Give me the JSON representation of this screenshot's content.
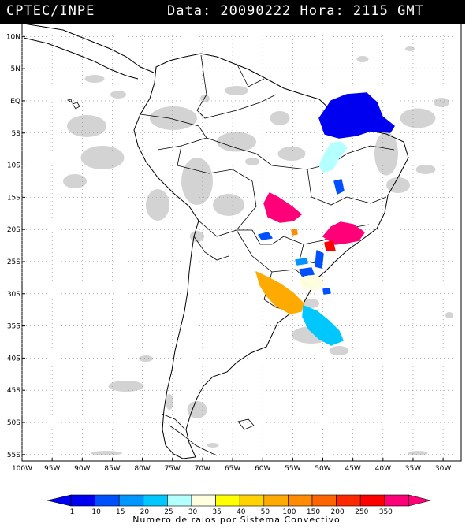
{
  "header": {
    "left": "CPTEC/INPE",
    "right": "Data: 20090222 Hora: 2115 GMT"
  },
  "map": {
    "lat_labels": [
      "10N",
      "5N",
      "EQ",
      "5S",
      "10S",
      "15S",
      "20S",
      "25S",
      "30S",
      "35S",
      "40S",
      "45S",
      "50S",
      "55S"
    ],
    "lat_values": [
      10,
      5,
      0,
      -5,
      -10,
      -15,
      -20,
      -25,
      -30,
      -35,
      -40,
      -45,
      -50,
      -55
    ],
    "lon_labels": [
      "100W",
      "95W",
      "90W",
      "85W",
      "80W",
      "75W",
      "70W",
      "65W",
      "60W",
      "55W",
      "50W",
      "45W",
      "40W",
      "35W",
      "30W"
    ],
    "lon_values": [
      -100,
      -95,
      -90,
      -85,
      -80,
      -75,
      -70,
      -65,
      -60,
      -55,
      -50,
      -45,
      -40,
      -35,
      -30
    ],
    "extent": {
      "lon_min": -100,
      "lon_max": -27,
      "lat_min": -56,
      "lat_max": 12
    },
    "grid": "dotted",
    "cloud_color": "#c8c8c8",
    "land_outline_color": "#000000"
  },
  "colorbar": {
    "labels": [
      "1",
      "10",
      "15",
      "20",
      "25",
      "30",
      "35",
      "40",
      "50",
      "100",
      "150",
      "200",
      "250",
      "350"
    ],
    "colors": [
      "#0000f0",
      "#0050ff",
      "#0096ff",
      "#00c8ff",
      "#b4ffff",
      "#ffffe0",
      "#ffff00",
      "#ffd200",
      "#ffaa00",
      "#ff8c00",
      "#ff6400",
      "#ff2800",
      "#ff0000",
      "#ff0078"
    ],
    "title": "Numero de raios por Sistema Convectivo"
  }
}
